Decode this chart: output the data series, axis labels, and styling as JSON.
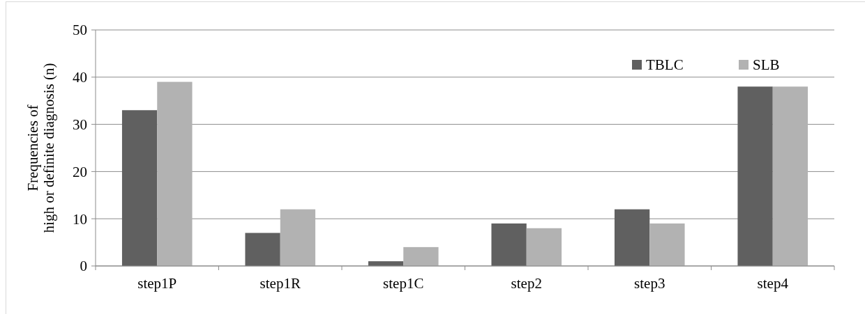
{
  "chart_data": {
    "type": "bar",
    "ylabel": "Frequencies of\nhigh or definite diagnosis (n)",
    "categories": [
      "step1P",
      "step1R",
      "step1C",
      "step2",
      "step3",
      "step4"
    ],
    "series": [
      {
        "name": "TBLC",
        "color": "#606060",
        "values": [
          33,
          7,
          1,
          9,
          12,
          38
        ]
      },
      {
        "name": "SLB",
        "color": "#b2b2b2",
        "values": [
          39,
          12,
          4,
          8,
          9,
          38
        ]
      }
    ],
    "ylim": [
      0,
      50
    ],
    "yticks": [
      0,
      10,
      20,
      30,
      40,
      50
    ],
    "grid": "y",
    "legend": "top right"
  }
}
